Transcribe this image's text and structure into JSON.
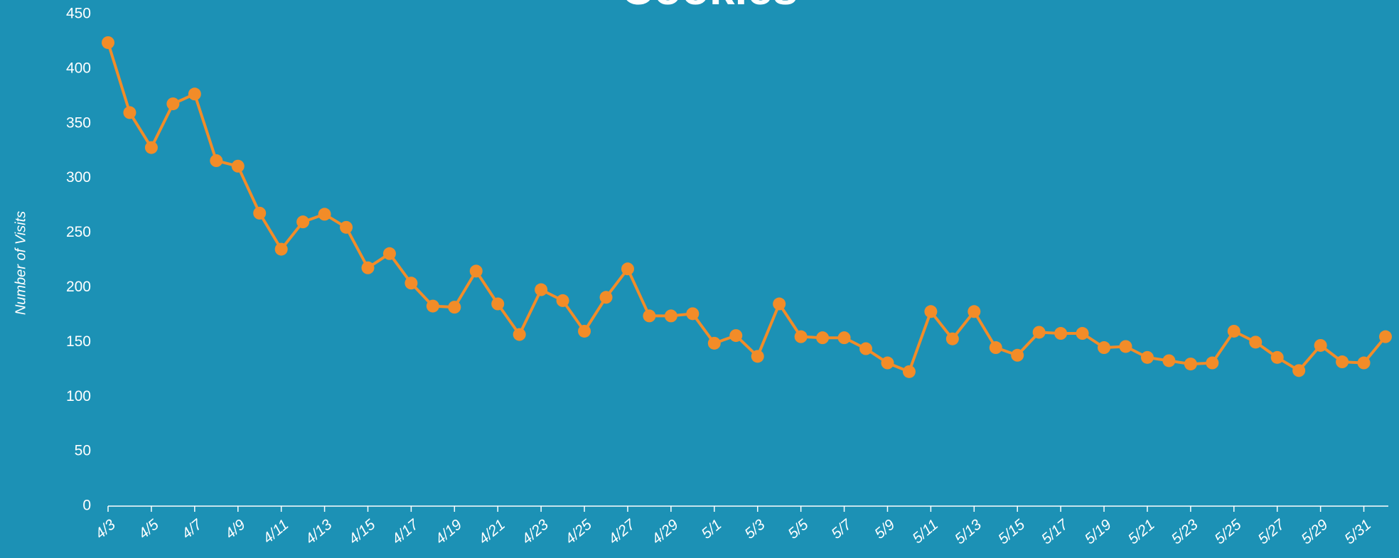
{
  "chart_data": {
    "type": "line",
    "title": "Cookies",
    "y_label": "Number of Visits",
    "categories": [
      "4/3",
      null,
      "4/5",
      null,
      "4/7",
      null,
      "4/9",
      null,
      "4/11",
      null,
      "4/13",
      null,
      "4/15",
      null,
      "4/17",
      null,
      "4/19",
      null,
      "4/21",
      null,
      "4/23",
      null,
      "4/25",
      null,
      "4/27",
      null,
      "4/29",
      null,
      "5/1",
      null,
      "5/3",
      null,
      "5/5",
      null,
      "5/7",
      null,
      "5/9",
      null,
      "5/11",
      null,
      "5/13",
      null,
      "5/15",
      null,
      "5/17",
      null,
      "5/19",
      null,
      "5/21",
      null,
      "5/23",
      null,
      "5/25",
      null,
      "5/27",
      null,
      "5/29",
      null,
      "5/31",
      null
    ],
    "series": [
      {
        "name": "Visits",
        "color": "#f28c28",
        "values": [
          424,
          360,
          328,
          368,
          377,
          316,
          311,
          268,
          235,
          260,
          267,
          255,
          218,
          231,
          204,
          183,
          182,
          215,
          185,
          157,
          198,
          188,
          160,
          191,
          217,
          174,
          174,
          176,
          149,
          156,
          137,
          185,
          155,
          154,
          154,
          144,
          131,
          123,
          178,
          153,
          178,
          145,
          138,
          159,
          158,
          158,
          145,
          146,
          136,
          133,
          130,
          131,
          160,
          150,
          136,
          124,
          147,
          132,
          131,
          155
        ]
      }
    ],
    "ylim": [
      0,
      450
    ],
    "yticks": [
      0,
      50,
      100,
      150,
      200,
      250,
      300,
      350,
      400,
      450
    ],
    "grid": false
  }
}
